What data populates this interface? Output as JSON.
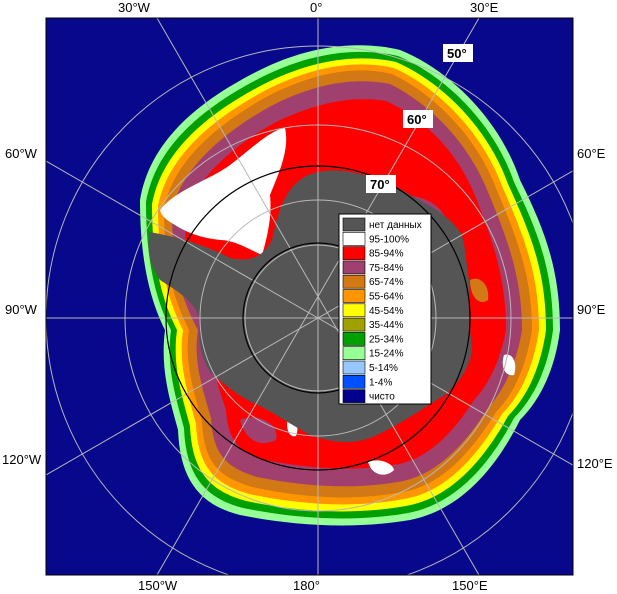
{
  "colors": {
    "ocean": "#08088c",
    "land": "#555555",
    "c95": "#ffffff",
    "c85": "#ff0000",
    "c75": "#a0406e",
    "c65": "#d27814",
    "c55": "#ff9600",
    "c45": "#ffff00",
    "c35": "#a0a000",
    "c25": "#00a000",
    "c15": "#96ff96",
    "c5": "#96c8ff",
    "c1": "#0050ff",
    "clear": "#00008c"
  },
  "lon_labels": {
    "top_30w": "30°W",
    "top_0": "0°",
    "top_30e": "30°E",
    "left_60w": "60°W",
    "right_60e": "60°E",
    "left_90w": "90°W",
    "right_90e": "90°E",
    "left_120w": "120°W",
    "right_120e": "120°E",
    "bottom_150w": "150°W",
    "bottom_180": "180°",
    "bottom_150e": "150°E"
  },
  "lat_labels": {
    "l50": "50°",
    "l60": "60°",
    "l70": "70°"
  },
  "legend": {
    "items": [
      {
        "label": "нет данных",
        "color": "#555555"
      },
      {
        "label": "95-100%",
        "color": "#ffffff"
      },
      {
        "label": "85-94%",
        "color": "#ff0000"
      },
      {
        "label": "75-84%",
        "color": "#a0406e"
      },
      {
        "label": "65-74%",
        "color": "#d27814"
      },
      {
        "label": "55-64%",
        "color": "#ff9600"
      },
      {
        "label": "45-54%",
        "color": "#ffff00"
      },
      {
        "label": "35-44%",
        "color": "#a0a000"
      },
      {
        "label": "25-34%",
        "color": "#00a000"
      },
      {
        "label": "15-24%",
        "color": "#96ff96"
      },
      {
        "label": "5-14%",
        "color": "#96c8ff"
      },
      {
        "label": "1-4%",
        "color": "#0050ff"
      },
      {
        "label": "чисто",
        "color": "#00008c"
      }
    ]
  }
}
